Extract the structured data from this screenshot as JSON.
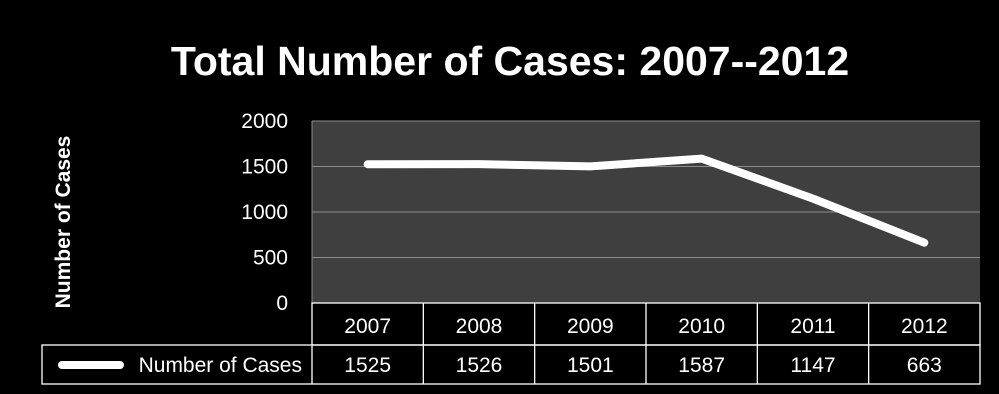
{
  "chart_data": {
    "type": "line",
    "title": "Total Number of Cases: 2007--2012",
    "xlabel": "",
    "ylabel": "Number of Cases",
    "ylim": [
      0,
      2000
    ],
    "yticks": [
      0,
      500,
      1000,
      1500,
      2000
    ],
    "categories": [
      "2007",
      "2008",
      "2009",
      "2010",
      "2011",
      "2012"
    ],
    "series": [
      {
        "name": "Number of Cases",
        "values": [
          1525,
          1526,
          1501,
          1587,
          1147,
          663
        ]
      }
    ],
    "grid": true,
    "legend": "data-table",
    "colors": {
      "background": "#000000",
      "plot_area": "#3f3f3f",
      "line": "#ffffff",
      "gridlines": "#8c8c8c"
    }
  }
}
